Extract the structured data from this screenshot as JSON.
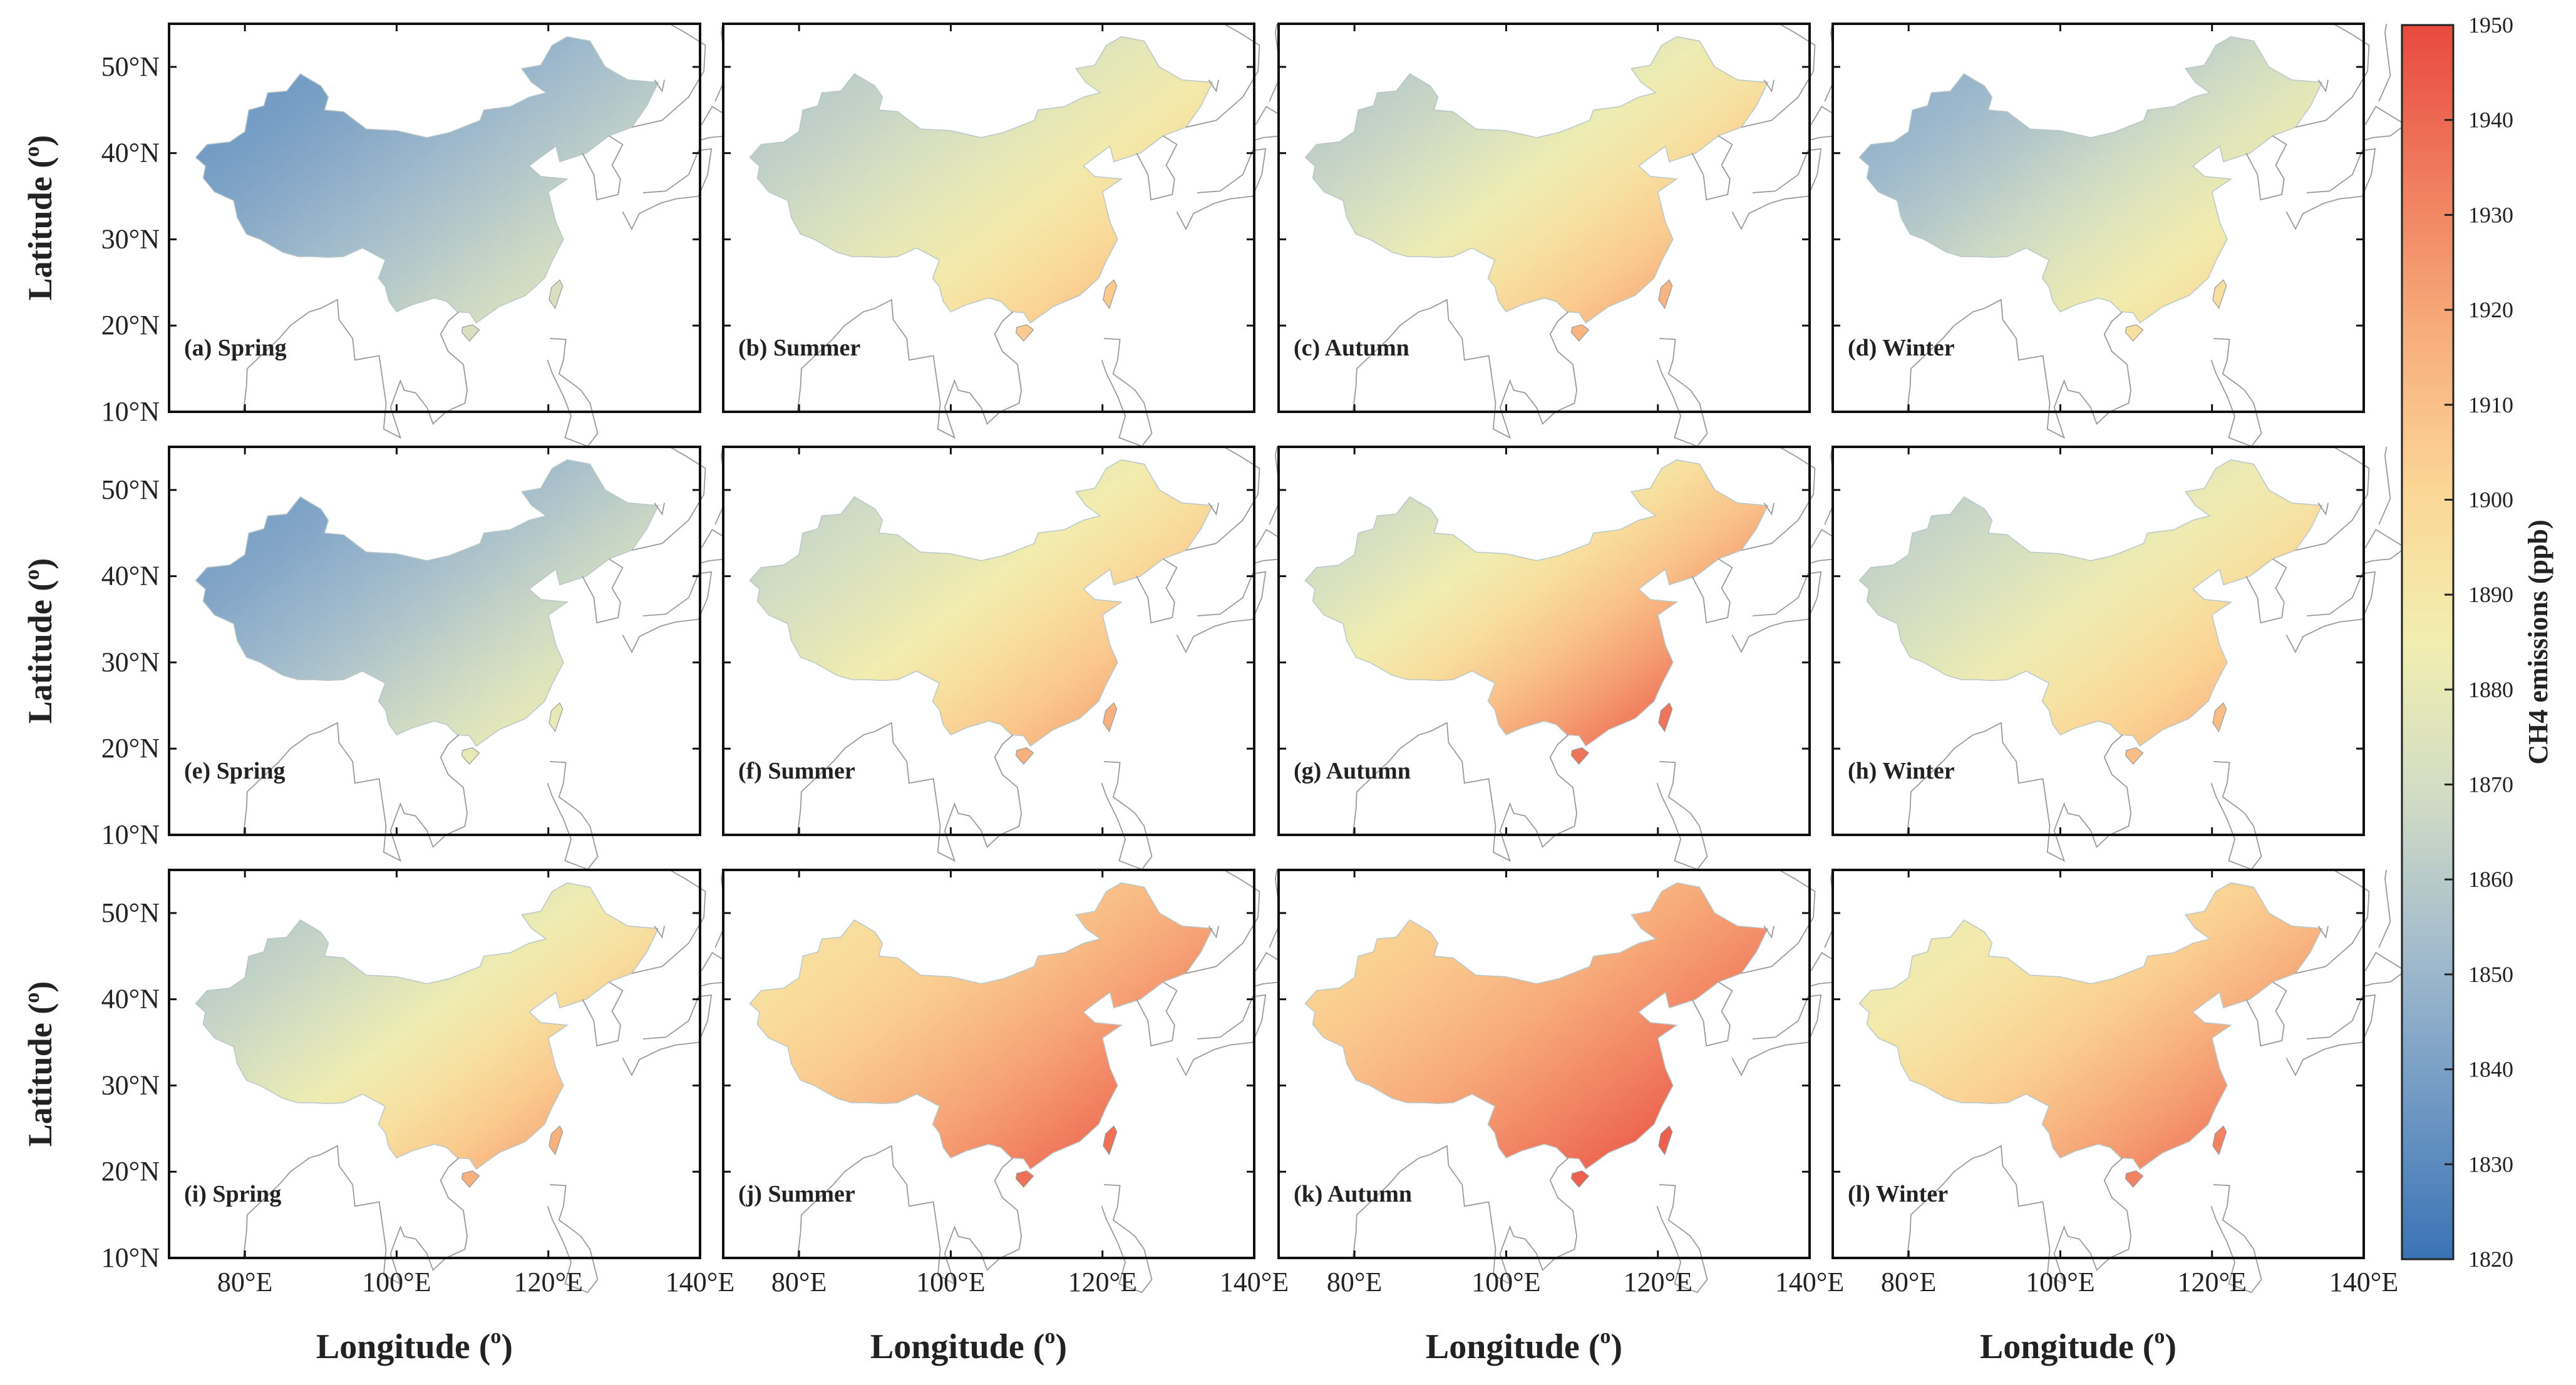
{
  "figure": {
    "xlabel": "Longitude (",
    "xlabel_sup": "o",
    "xlabel_close": ")",
    "ylabel": "Latitude (",
    "ylabel_sup": "o",
    "ylabel_close": ")",
    "lon_ticks": [
      "80°E",
      "100°E",
      "120°E",
      "140°E"
    ],
    "lat_ticks": [
      "10°N",
      "20°N",
      "30°N",
      "40°N",
      "50°N"
    ],
    "lat_values": [
      10,
      20,
      30,
      40,
      50
    ],
    "lon_values": [
      80,
      100,
      120,
      140
    ],
    "extent": {
      "lon": [
        70,
        140
      ],
      "lat": [
        10,
        55
      ]
    }
  },
  "panels": [
    {
      "label": "(a) Spring",
      "row": 0,
      "col": 0,
      "base": 0.12,
      "grad": 0.3
    },
    {
      "label": "(b) Summer",
      "row": 0,
      "col": 1,
      "base": 0.3,
      "grad": 0.38
    },
    {
      "label": "(c) Autumn",
      "row": 0,
      "col": 2,
      "base": 0.3,
      "grad": 0.45
    },
    {
      "label": "(d) Winter",
      "row": 0,
      "col": 3,
      "base": 0.2,
      "grad": 0.4
    },
    {
      "label": "(e) Spring",
      "row": 1,
      "col": 0,
      "base": 0.14,
      "grad": 0.34
    },
    {
      "label": "(f) Summer",
      "row": 1,
      "col": 1,
      "base": 0.34,
      "grad": 0.42
    },
    {
      "label": "(g) Autumn",
      "row": 1,
      "col": 2,
      "base": 0.36,
      "grad": 0.56
    },
    {
      "label": "(h) Winter",
      "row": 1,
      "col": 3,
      "base": 0.32,
      "grad": 0.4
    },
    {
      "label": "(i) Spring",
      "row": 2,
      "col": 0,
      "base": 0.3,
      "grad": 0.46
    },
    {
      "label": "(j) Summer",
      "row": 2,
      "col": 1,
      "base": 0.56,
      "grad": 0.36
    },
    {
      "label": "(k) Autumn",
      "row": 2,
      "col": 2,
      "base": 0.62,
      "grad": 0.34
    },
    {
      "label": "(l) Winter",
      "row": 2,
      "col": 3,
      "base": 0.48,
      "grad": 0.4
    }
  ],
  "colorbar": {
    "label": "CH4 emissions (ppb)",
    "min": 1820,
    "max": 1950,
    "ticks": [
      "1820",
      "1830",
      "1840",
      "1850",
      "1860",
      "1870",
      "1880",
      "1890",
      "1900",
      "1910",
      "1920",
      "1930",
      "1940",
      "1950"
    ],
    "colors": [
      "#3a73b6",
      "#6f98c3",
      "#a3bccd",
      "#d1dcc4",
      "#f1eeb0",
      "#fbd695",
      "#f7ad7c",
      "#f07c5e",
      "#e8493f"
    ]
  },
  "colors": {
    "frame": "#111111",
    "coast": "#9a9a9a",
    "background": "#ffffff"
  }
}
